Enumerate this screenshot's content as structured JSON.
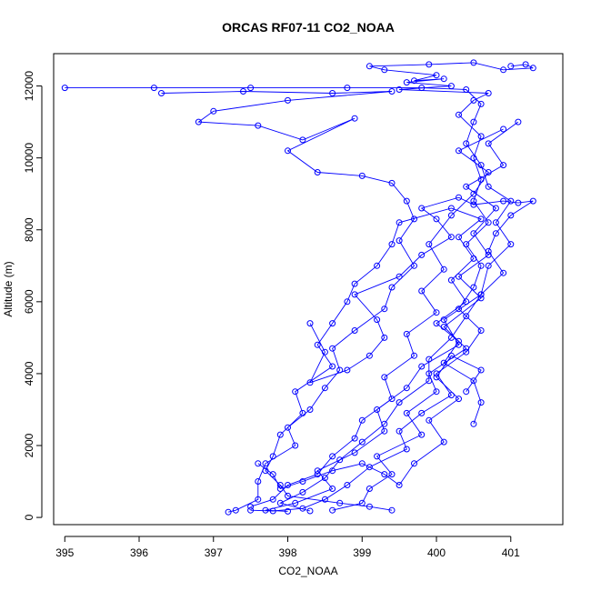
{
  "chart_data": {
    "type": "line",
    "title": "ORCAS RF07-11 CO2_NOAA",
    "xlabel": "CO2_NOAA",
    "ylabel": "Altitude (m)",
    "xlim": [
      394.85,
      401.7
    ],
    "ylim": [
      -200,
      12900
    ],
    "xticks": [
      "395",
      "396",
      "397",
      "398",
      "399",
      "400",
      "401"
    ],
    "yticks": [
      "0",
      "2000",
      "4000",
      "6000",
      "8000",
      "10000",
      "12000"
    ],
    "markers": "open circles",
    "grid": false,
    "legend": "none",
    "color": "#0000ff",
    "series": [
      {
        "values": [
          [
            401.0,
            12550
          ],
          [
            401.2,
            12600
          ],
          [
            401.3,
            12500
          ],
          [
            400.9,
            12450
          ],
          [
            400.5,
            12650
          ],
          [
            399.9,
            12600
          ],
          [
            399.1,
            12550
          ],
          [
            399.3,
            12450
          ],
          [
            400.0,
            12300
          ],
          [
            399.7,
            12150
          ],
          [
            400.1,
            12200
          ],
          [
            399.6,
            12100
          ],
          [
            400.2,
            12000
          ],
          [
            399.5,
            11900
          ],
          [
            400.7,
            11800
          ],
          [
            400.5,
            11600
          ],
          [
            400.3,
            11200
          ],
          [
            400.6,
            10600
          ],
          [
            400.5,
            10000
          ],
          [
            400.6,
            9400
          ],
          [
            400.5,
            8800
          ],
          [
            400.7,
            8200
          ],
          [
            400.4,
            7600
          ],
          [
            400.6,
            7000
          ],
          [
            400.5,
            6400
          ],
          [
            400.3,
            5800
          ],
          [
            400.6,
            5200
          ],
          [
            400.4,
            4600
          ],
          [
            400.0,
            4000
          ],
          [
            400.2,
            3400
          ],
          [
            399.8,
            2900
          ],
          [
            399.5,
            2400
          ],
          [
            399.6,
            1900
          ],
          [
            399.1,
            1400
          ],
          [
            398.8,
            900
          ],
          [
            398.5,
            500
          ],
          [
            398.2,
            250
          ],
          [
            397.8,
            180
          ],
          [
            397.5,
            200
          ]
        ]
      },
      {
        "values": [
          [
            395.0,
            11950
          ],
          [
            396.2,
            11950
          ],
          [
            397.5,
            11950
          ],
          [
            398.8,
            11950
          ],
          [
            399.8,
            11950
          ],
          [
            400.4,
            11900
          ],
          [
            400.6,
            11500
          ],
          [
            400.5,
            11000
          ],
          [
            400.4,
            10400
          ],
          [
            400.6,
            9800
          ],
          [
            400.7,
            9200
          ],
          [
            401.0,
            8800
          ],
          [
            400.8,
            8200
          ],
          [
            401.0,
            7600
          ],
          [
            400.7,
            7000
          ],
          [
            400.6,
            6200
          ],
          [
            400.1,
            5500
          ],
          [
            400.3,
            4800
          ],
          [
            399.8,
            4200
          ],
          [
            399.6,
            3600
          ],
          [
            399.2,
            3000
          ],
          [
            399.3,
            2400
          ],
          [
            398.9,
            1800
          ],
          [
            398.4,
            1300
          ],
          [
            398.6,
            800
          ],
          [
            398.1,
            400
          ],
          [
            397.7,
            200
          ],
          [
            398.0,
            170
          ]
        ]
      },
      {
        "values": [
          [
            396.3,
            11800
          ],
          [
            397.4,
            11850
          ],
          [
            398.6,
            11800
          ],
          [
            399.4,
            11850
          ],
          [
            398.0,
            11600
          ],
          [
            397.0,
            11300
          ],
          [
            396.8,
            11000
          ],
          [
            397.6,
            10900
          ],
          [
            398.2,
            10500
          ],
          [
            398.9,
            11100
          ],
          [
            398.0,
            10200
          ],
          [
            398.4,
            9600
          ],
          [
            399.0,
            9500
          ],
          [
            399.4,
            9300
          ],
          [
            399.6,
            8800
          ],
          [
            399.7,
            8300
          ],
          [
            399.5,
            7700
          ],
          [
            399.7,
            7000
          ],
          [
            399.4,
            6400
          ],
          [
            399.3,
            5800
          ],
          [
            398.9,
            5200
          ],
          [
            398.6,
            4700
          ],
          [
            398.7,
            4100
          ],
          [
            398.5,
            3600
          ],
          [
            398.3,
            3000
          ],
          [
            398.0,
            2500
          ],
          [
            398.1,
            2000
          ],
          [
            397.7,
            1500
          ],
          [
            397.6,
            1000
          ],
          [
            397.6,
            500
          ],
          [
            397.3,
            200
          ],
          [
            397.2,
            150
          ]
        ]
      },
      {
        "values": [
          [
            398.3,
            5400
          ],
          [
            398.5,
            4600
          ],
          [
            398.3,
            3750
          ],
          [
            398.8,
            4100
          ],
          [
            399.1,
            4500
          ],
          [
            399.3,
            5000
          ],
          [
            399.2,
            5500
          ],
          [
            398.9,
            6200
          ],
          [
            399.5,
            6700
          ],
          [
            399.8,
            7300
          ],
          [
            400.2,
            7800
          ],
          [
            400.0,
            8300
          ],
          [
            399.8,
            8600
          ],
          [
            400.3,
            8900
          ],
          [
            400.5,
            8700
          ],
          [
            400.9,
            8800
          ],
          [
            401.1,
            8750
          ],
          [
            401.3,
            8800
          ],
          [
            401.0,
            8400
          ],
          [
            400.8,
            7900
          ],
          [
            400.7,
            7400
          ],
          [
            400.9,
            6800
          ],
          [
            400.6,
            6200
          ],
          [
            400.4,
            5600
          ],
          [
            400.2,
            5000
          ],
          [
            399.9,
            4400
          ],
          [
            399.9,
            3800
          ],
          [
            399.5,
            3200
          ],
          [
            399.3,
            2600
          ],
          [
            399.0,
            2100
          ],
          [
            398.7,
            1600
          ],
          [
            398.5,
            1100
          ],
          [
            398.2,
            700
          ],
          [
            397.9,
            400
          ],
          [
            398.3,
            180
          ]
        ]
      },
      {
        "values": [
          [
            400.5,
            2600
          ],
          [
            400.6,
            3200
          ],
          [
            400.5,
            3800
          ],
          [
            400.1,
            4300
          ],
          [
            400.3,
            4900
          ],
          [
            400.0,
            5400
          ],
          [
            400.4,
            6000
          ],
          [
            400.2,
            6600
          ],
          [
            400.5,
            7200
          ],
          [
            400.3,
            7800
          ],
          [
            400.6,
            8300
          ],
          [
            400.2,
            8600
          ],
          [
            399.5,
            8200
          ],
          [
            399.4,
            7600
          ],
          [
            399.2,
            7000
          ],
          [
            398.9,
            6500
          ],
          [
            398.8,
            6000
          ],
          [
            398.6,
            5400
          ],
          [
            398.4,
            4800
          ],
          [
            398.6,
            4200
          ],
          [
            398.1,
            3500
          ],
          [
            398.2,
            2900
          ],
          [
            397.9,
            2300
          ],
          [
            397.8,
            1700
          ],
          [
            397.7,
            1300
          ],
          [
            397.9,
            900
          ],
          [
            398.0,
            600
          ],
          [
            398.7,
            400
          ],
          [
            399.1,
            300
          ],
          [
            399.4,
            200
          ]
        ]
      },
      {
        "values": [
          [
            400.9,
            10800
          ],
          [
            400.3,
            10200
          ],
          [
            400.7,
            9600
          ],
          [
            400.5,
            9000
          ],
          [
            400.2,
            8400
          ],
          [
            399.9,
            7600
          ],
          [
            400.1,
            6900
          ],
          [
            399.8,
            6300
          ],
          [
            400.0,
            5700
          ],
          [
            399.6,
            5100
          ],
          [
            399.7,
            4500
          ],
          [
            399.3,
            3900
          ],
          [
            399.4,
            3300
          ],
          [
            399.0,
            2700
          ],
          [
            398.9,
            2200
          ],
          [
            398.6,
            1700
          ],
          [
            398.4,
            1200
          ],
          [
            398.0,
            900
          ],
          [
            397.8,
            500
          ],
          [
            397.5,
            300
          ]
        ]
      },
      {
        "values": [
          [
            401.1,
            11000
          ],
          [
            400.7,
            10400
          ],
          [
            400.9,
            9800
          ],
          [
            400.4,
            9200
          ],
          [
            400.8,
            8600
          ],
          [
            400.5,
            7900
          ],
          [
            400.7,
            7300
          ],
          [
            400.3,
            6700
          ],
          [
            400.6,
            6100
          ],
          [
            400.1,
            5300
          ],
          [
            400.4,
            4700
          ],
          [
            399.9,
            4000
          ],
          [
            400.0,
            3500
          ],
          [
            399.6,
            2900
          ],
          [
            399.8,
            2300
          ],
          [
            399.2,
            1700
          ],
          [
            399.4,
            1200
          ],
          [
            399.1,
            800
          ],
          [
            399.0,
            400
          ],
          [
            398.6,
            200
          ]
        ]
      },
      {
        "values": [
          [
            397.6,
            1500
          ],
          [
            397.8,
            1200
          ],
          [
            397.9,
            800
          ],
          [
            398.2,
            1000
          ],
          [
            398.6,
            1300
          ],
          [
            399.0,
            1500
          ],
          [
            399.3,
            1200
          ],
          [
            399.5,
            900
          ],
          [
            399.7,
            1500
          ],
          [
            400.1,
            2100
          ],
          [
            399.9,
            2700
          ],
          [
            400.3,
            3300
          ],
          [
            400.0,
            3900
          ],
          [
            400.2,
            4500
          ],
          [
            400.6,
            4100
          ],
          [
            400.4,
            3500
          ]
        ]
      }
    ]
  }
}
